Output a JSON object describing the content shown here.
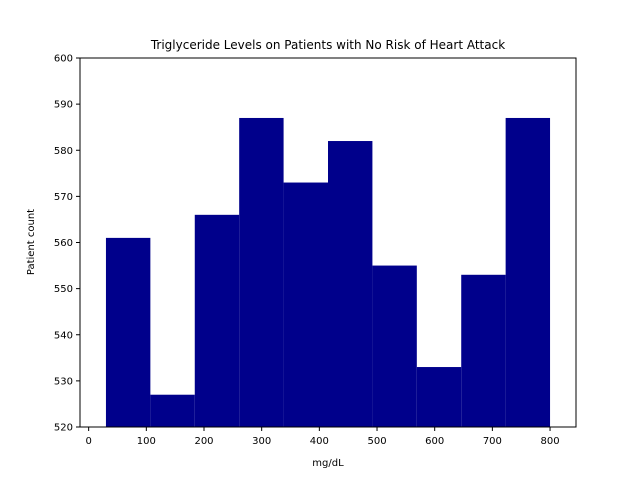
{
  "chart_data": {
    "type": "bar",
    "title": "Triglyceride Levels on Patients with No Risk of Heart Attack",
    "xlabel": "mg/dL",
    "ylabel": "Patient count",
    "bin_edges": [
      30,
      107,
      184,
      261,
      338,
      415,
      492,
      569,
      646,
      723,
      800
    ],
    "values": [
      561,
      527,
      566,
      587,
      573,
      582,
      555,
      533,
      553,
      587
    ],
    "xlim": [
      -15,
      845
    ],
    "ylim": [
      520,
      600
    ],
    "xticks": [
      0,
      100,
      200,
      300,
      400,
      500,
      600,
      700,
      800
    ],
    "yticks": [
      520,
      530,
      540,
      550,
      560,
      570,
      580,
      590,
      600
    ],
    "bar_color": "#00008b",
    "grid": false,
    "legend": "none"
  }
}
